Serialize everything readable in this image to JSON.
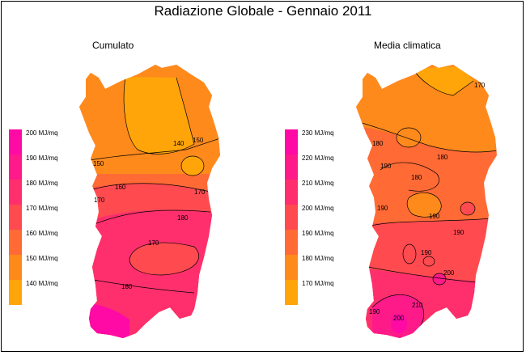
{
  "title": "Radiazione Globale - Gennaio 2011",
  "left_map": {
    "subtitle": "Cumulato",
    "legend": [
      {
        "label": "200 MJ/mq",
        "color": "#ff0aa5"
      },
      {
        "label": "190 MJ/mq",
        "color": "#ff1a8a"
      },
      {
        "label": "180 MJ/mq",
        "color": "#ff2f6d"
      },
      {
        "label": "170 MJ/mq",
        "color": "#ff4a50"
      },
      {
        "label": "160 MJ/mq",
        "color": "#ff6a35"
      },
      {
        "label": "150 MJ/mq",
        "color": "#ff8a1c"
      },
      {
        "label": "140 MJ/mq",
        "color": "#ffa50a"
      }
    ],
    "isolines": [
      "140",
      "150",
      "150",
      "160",
      "170",
      "170",
      "180",
      "170",
      "180"
    ]
  },
  "right_map": {
    "subtitle": "Media climatica",
    "legend": [
      {
        "label": "230 MJ/mq",
        "color": "#ff0aa5"
      },
      {
        "label": "220 MJ/mq",
        "color": "#ff1a8a"
      },
      {
        "label": "210 MJ/mq",
        "color": "#ff2f6d"
      },
      {
        "label": "200 MJ/mq",
        "color": "#ff4a50"
      },
      {
        "label": "190 MJ/mq",
        "color": "#ff6a35"
      },
      {
        "label": "180 MJ/mq",
        "color": "#ff8a1c"
      },
      {
        "label": "170 MJ/mq",
        "color": "#ffa50a"
      }
    ],
    "isolines": [
      "170",
      "180",
      "180",
      "180",
      "190",
      "190",
      "190",
      "200",
      "190",
      "210",
      "200",
      "190",
      "190"
    ]
  }
}
